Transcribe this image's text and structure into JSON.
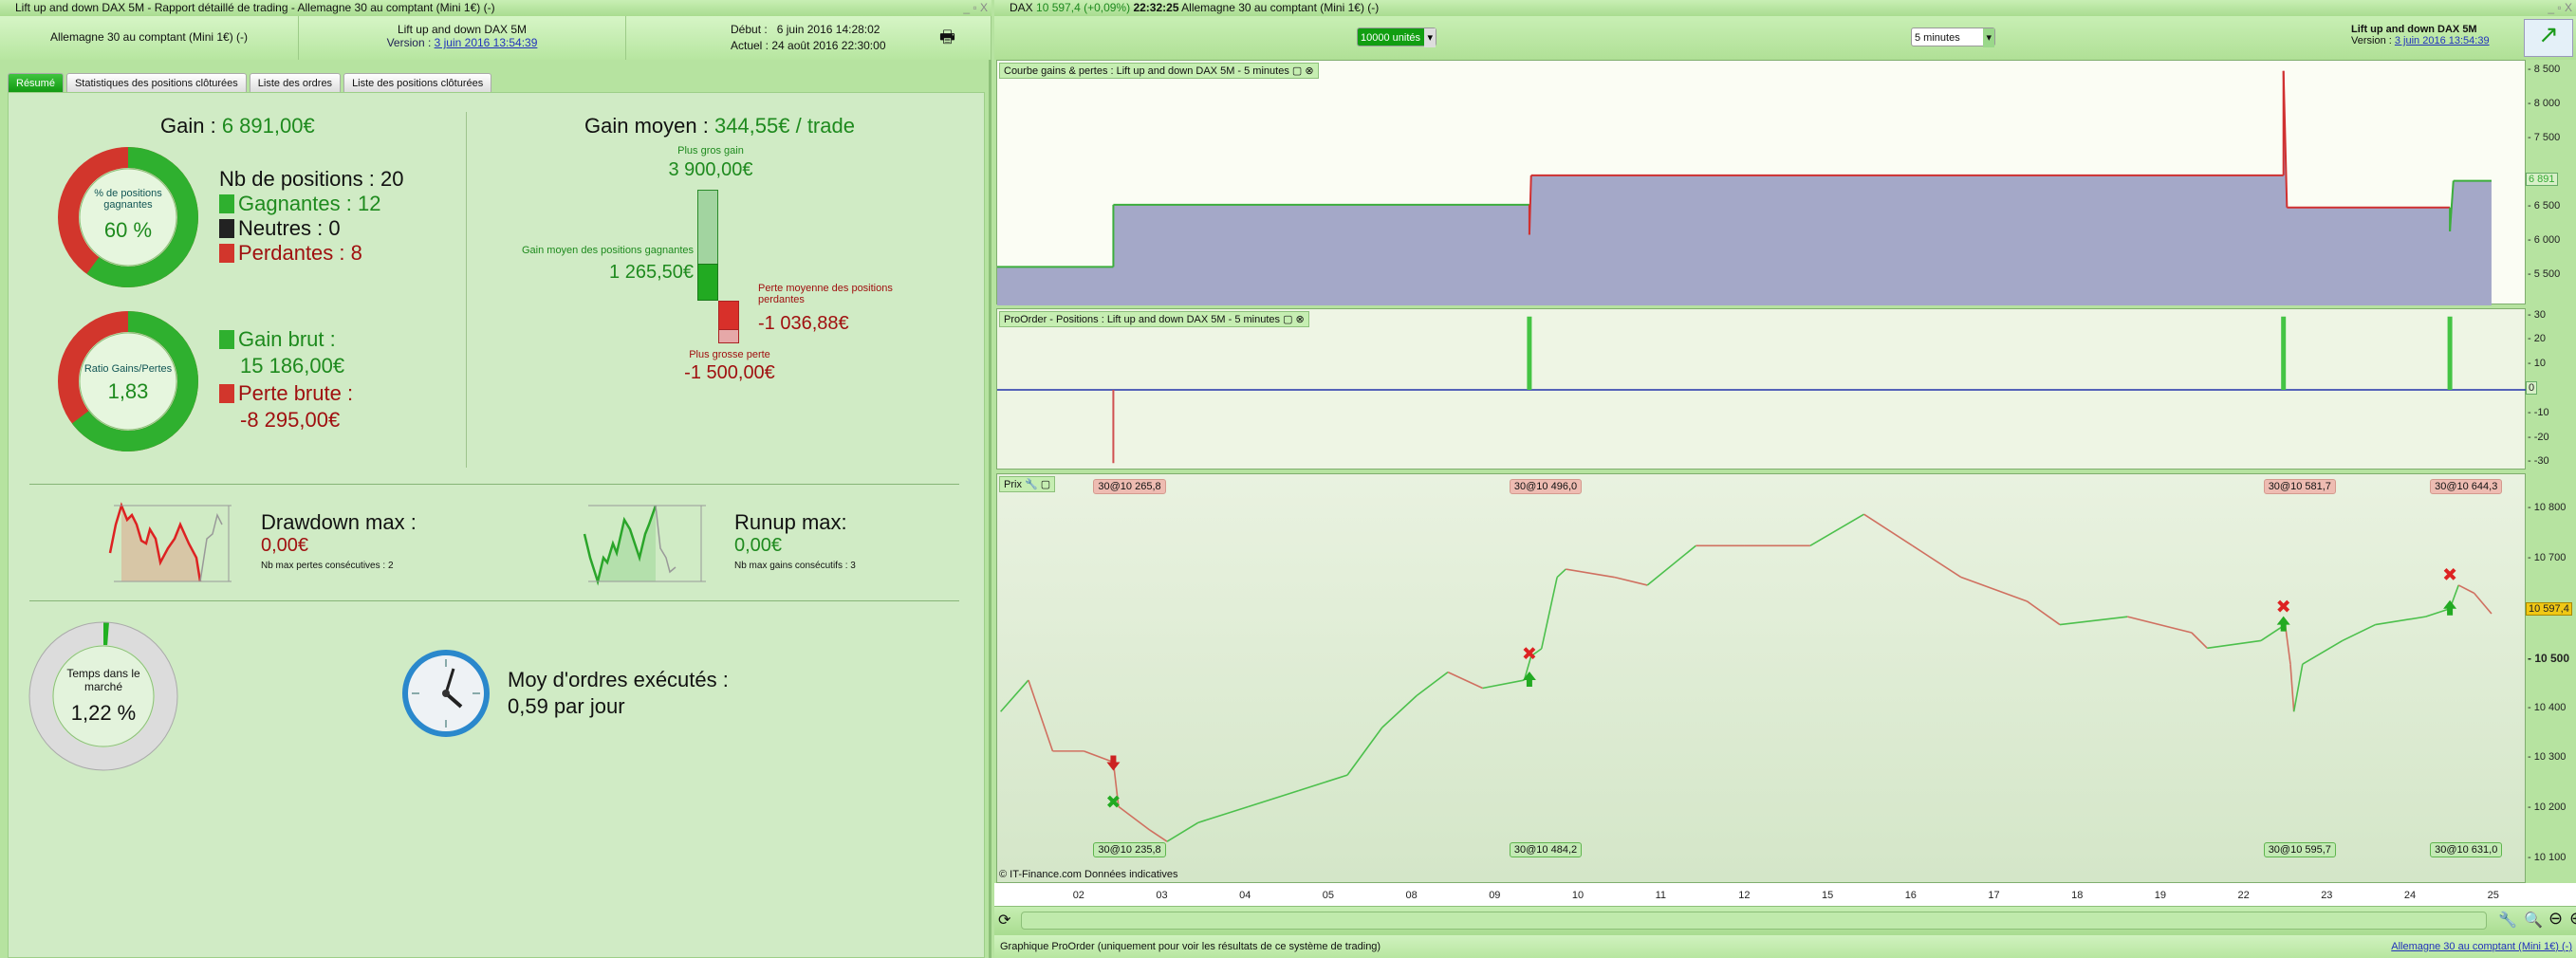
{
  "left": {
    "window_title": "Lift up and down DAX 5M - Rapport détaillé de trading - Allemagne 30 au comptant (Mini 1€) (-)",
    "instrument": "Allemagne 30 au comptant (Mini 1€) (-)",
    "strategy": "Lift up and down DAX 5M",
    "version_label": "Version : ",
    "version": "3 juin 2016 13:54:39",
    "start_label": "Début :",
    "start": "6 juin 2016 14:28:02",
    "current_label": "Actuel :",
    "current": "24 août 2016 22:30:00",
    "print_icon": "printer-icon",
    "tabs": [
      "Résumé",
      "Statistiques des positions clôturées",
      "Liste des ordres",
      "Liste des positions clôturées"
    ],
    "active_tab": "Résumé",
    "gain_label": "Gain : ",
    "gain": "6 891,00€",
    "win_donut": {
      "label": "% de positions gagnantes",
      "value": "60 %",
      "fraction": 0.6
    },
    "nb_positions": "Nb de positions : 20",
    "winners": "Gagnantes : 12",
    "neutral": "Neutres : 0",
    "losers": "Perdantes : 8",
    "ratio_donut": {
      "label": "Ratio Gains/Pertes",
      "value": "1,83",
      "fraction": 0.647
    },
    "gross_gain_label": "Gain brut :",
    "gross_gain": "15 186,00€",
    "gross_loss_label": "Perte brute :",
    "gross_loss": "-8 295,00€",
    "avg_gain_label": "Gain moyen : ",
    "avg_gain": "344,55€ / trade",
    "max_gain_label": "Plus gros gain",
    "max_gain": "3 900,00€",
    "avg_win_label": "Gain moyen des positions gagnantes",
    "avg_win": "1 265,50€",
    "avg_loss_label": "Perte moyenne des positions perdantes",
    "avg_loss": "-1 036,88€",
    "max_loss_label": "Plus grosse perte",
    "max_loss": "-1 500,00€",
    "drawdown_label": "Drawdown max :",
    "drawdown": "0,00€",
    "drawdown_sub": "Nb max pertes consécutives : 2",
    "runup_label": "Runup max:",
    "runup": "0,00€",
    "runup_sub": "Nb max gains consécutifs : 3",
    "market_time": {
      "label": "Temps dans le marché",
      "value": "1,22 %",
      "fraction": 0.0122
    },
    "orders_label": "Moy d'ordres exécutés :",
    "orders": "0,59 par jour",
    "clock_icon": "clock-icon"
  },
  "right": {
    "window_title_symbol": "DAX",
    "window_title_price": "10 597,4 (+0,09%)",
    "window_title_time": "22:32:25",
    "window_title_instrument": "Allemagne 30 au comptant (Mini 1€) (-)",
    "units": "10000 unités",
    "timeframe": "5 minutes",
    "strategy": "Lift up and down DAX 5M",
    "version_label": "Version : ",
    "version": "3 juin 2016 13:54:39",
    "equity_title": "Courbe gains & pertes : Lift up and down DAX 5M - 5 minutes",
    "positions_title": "ProOrder - Positions : Lift up and down DAX 5M - 5 minutes",
    "price_title": "Prix",
    "copyright": "© IT-Finance.com  Données indicatives",
    "status": "Graphique ProOrder (uniquement pour voir les résultats de ce système de trading)",
    "status_link": "Allemagne 30 au comptant (Mini 1€) (-)"
  },
  "chart_data": [
    {
      "type": "area",
      "title": "Courbe gains & pertes : Lift up and down DAX 5M - 5 minutes",
      "yticks": [
        5500,
        6000,
        6500,
        7000,
        7500,
        8000,
        8500
      ],
      "ylim": [
        5065,
        8650
      ],
      "last_value": "6 891",
      "fill": "#a4a8c8",
      "points": [
        [
          "01 00:00",
          5630,
          "#3cae3c"
        ],
        [
          "02 09:30",
          5630,
          "#3cae3c"
        ],
        [
          "02 09:30",
          6540,
          "#3cae3c"
        ],
        [
          "09 09:30",
          6540,
          "#3cae3c"
        ],
        [
          "09 09:30",
          6100,
          "#d03030"
        ],
        [
          "09 10:00",
          6970,
          "#d03030"
        ],
        [
          "22 11:00",
          6970,
          "#d03030"
        ],
        [
          "22 11:00",
          8500,
          "#d03030"
        ],
        [
          "22 12:00",
          6500,
          "#d03030"
        ],
        [
          "24 11:00",
          6500,
          "#d03030"
        ],
        [
          "24 11:00",
          6150,
          "#3cae3c"
        ],
        [
          "24 12:00",
          6891,
          "#3cae3c"
        ],
        [
          "24 23:00",
          6891,
          "#3cae3c"
        ]
      ]
    },
    {
      "type": "bar",
      "title": "ProOrder - Positions : Lift up and down DAX 5M - 5 minutes",
      "yticks": [
        30,
        20,
        10,
        0,
        -10,
        -20,
        -30
      ],
      "ylim": [
        -33,
        33
      ],
      "last_value": "0",
      "bars": [
        [
          "02 09:30",
          -30
        ],
        [
          "09 09:30",
          30
        ],
        [
          "22 11:00",
          30
        ],
        [
          "24 11:00",
          30
        ]
      ]
    },
    {
      "type": "line",
      "title": "Prix",
      "yticks": [
        10100,
        10200,
        10300,
        10400,
        10500,
        10600,
        10700,
        10800
      ],
      "ylim": [
        10050,
        10870
      ],
      "last_value": "10 597,4",
      "xticks": [
        "02",
        "03",
        "04",
        "05",
        "08",
        "09",
        "10",
        "11",
        "12",
        "15",
        "16",
        "17",
        "18",
        "19",
        "22",
        "23",
        "24",
        "25"
      ],
      "points": [
        [
          "01 01:00",
          10395
        ],
        [
          "01 09:00",
          10458
        ],
        [
          "01 16:00",
          10316
        ],
        [
          "02 01:00",
          10316
        ],
        [
          "02 09:30",
          10294
        ],
        [
          "02 11:00",
          10205
        ],
        [
          "02 20:00",
          10158
        ],
        [
          "03 01:00",
          10135
        ],
        [
          "03 10:00",
          10173
        ],
        [
          "04 00:30",
          10205
        ],
        [
          "04 15:00",
          10237
        ],
        [
          "05 05:00",
          10268
        ],
        [
          "05 15:00",
          10363
        ],
        [
          "08 01:00",
          10427
        ],
        [
          "08 10:00",
          10474
        ],
        [
          "08 20:00",
          10442
        ],
        [
          "09 08:00",
          10458
        ],
        [
          "09 10:00",
          10506
        ],
        [
          "09 13:00",
          10521
        ],
        [
          "09 17:30",
          10664
        ],
        [
          "09 20:00",
          10680
        ],
        [
          "10 10:00",
          10664
        ],
        [
          "10 19:30",
          10648
        ],
        [
          "11 09:30",
          10727
        ],
        [
          "11 23:30",
          10727
        ],
        [
          "12 18:30",
          10727
        ],
        [
          "15 10:00",
          10790
        ],
        [
          "16 00:00",
          10727
        ],
        [
          "16 14:00",
          10664
        ],
        [
          "17 09:00",
          10616
        ],
        [
          "17 18:30",
          10569
        ],
        [
          "18 14:00",
          10585
        ],
        [
          "19 08:30",
          10553
        ],
        [
          "19 13:00",
          10522
        ],
        [
          "22 04:30",
          10537
        ],
        [
          "22 11:30",
          10569
        ],
        [
          "22 13:00",
          10490
        ],
        [
          "22 14:00",
          10395
        ],
        [
          "22 16:30",
          10490
        ],
        [
          "23 04:00",
          10537
        ],
        [
          "23 13:30",
          10569
        ],
        [
          "24 04:00",
          10585
        ],
        [
          "24 11:00",
          10601
        ],
        [
          "24 13:30",
          10648
        ],
        [
          "24 18:00",
          10632
        ],
        [
          "24 23:00",
          10591
        ]
      ],
      "trades": [
        {
          "x": "02 09:30",
          "entry": "30@10 265,8",
          "exit": "30@10 235,8",
          "entry_marker": "sell-arrow",
          "exit_marker": "cover-cross",
          "entry_price": 10294,
          "exit_price": 10215
        },
        {
          "x": "09 09:30",
          "entry": "30@10 496,0",
          "exit": "30@10 484,2",
          "entry_marker": "buy-arrow",
          "exit_marker": "sell-cross",
          "entry_price": 10458,
          "exit_price": 10512
        },
        {
          "x": "22 11:00",
          "entry": "30@10 581,7",
          "exit": "30@10 595,7",
          "entry_marker": "buy-arrow",
          "exit_marker": "sell-cross",
          "entry_price": 10569,
          "exit_price": 10606
        },
        {
          "x": "24 11:00",
          "entry": "30@10 644,3",
          "exit": "30@10 631,0",
          "entry_marker": "buy-arrow",
          "exit_marker": "sell-cross",
          "entry_price": 10601,
          "exit_price": 10670
        }
      ]
    }
  ]
}
